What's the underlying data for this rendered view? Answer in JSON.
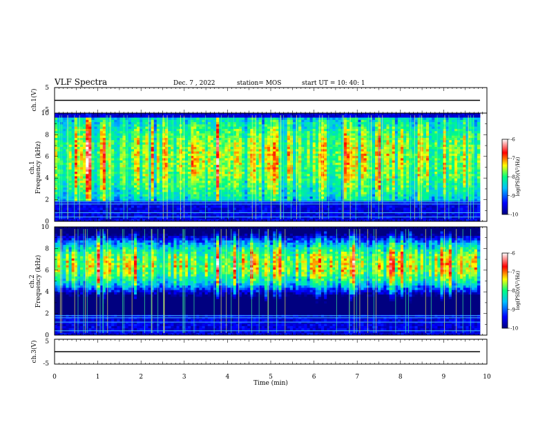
{
  "header": {
    "title": "VLF Spectra",
    "date": "Dec. 7 , 2022",
    "station": "station= MOS",
    "start": "start UT = 10: 40: 1"
  },
  "chart_data": [
    {
      "type": "line",
      "name": "ch1-voltage",
      "ylabel": "ch.1(V)",
      "ylim": [
        -5,
        5
      ],
      "yticks": [
        "5",
        "-5"
      ],
      "xlim": [
        0,
        10
      ],
      "x": [
        0,
        9.84
      ],
      "y": [
        0,
        0
      ]
    },
    {
      "type": "heatmap",
      "name": "ch1-spectrogram",
      "ylabel": "ch.1 Frequency (kHz)",
      "ylim": [
        0,
        10
      ],
      "yticks": [
        "0",
        "2",
        "4",
        "6",
        "8",
        "10"
      ],
      "xlim": [
        0,
        9.84
      ],
      "intense_band_khz": [
        2,
        9.5
      ],
      "hum_lines_khz": [
        0.4,
        0.8,
        1.6,
        1.8
      ],
      "colorbar": {
        "label": "log(PSD)(V²/Hz)",
        "range": [
          -10,
          -6
        ],
        "ticks": [
          "-6",
          "-7",
          "-8",
          "-9",
          "-10"
        ],
        "colors": [
          "#000080",
          "#0000ff",
          "#00c0ff",
          "#00ff80",
          "#ffff00",
          "#ff0000",
          "#ffffff"
        ]
      }
    },
    {
      "type": "heatmap",
      "name": "ch2-spectrogram",
      "ylabel": "ch.2 Frequency (kHz)",
      "ylim": [
        0,
        10
      ],
      "yticks": [
        "0",
        "2",
        "4",
        "6",
        "8",
        "10"
      ],
      "xlim": [
        0,
        9.84
      ],
      "intense_band_khz": [
        5.5,
        7.5
      ],
      "hum_lines_khz": [
        0.4,
        1.2,
        1.6,
        1.8
      ],
      "colorbar": {
        "label": "log(PSD)(V²/Hz)",
        "range": [
          -10,
          -6
        ],
        "ticks": [
          "-6",
          "-7",
          "-8",
          "-9",
          "-10"
        ],
        "colors": [
          "#000080",
          "#0000ff",
          "#00c0ff",
          "#00ff80",
          "#ffff00",
          "#ff0000",
          "#ffffff"
        ]
      }
    },
    {
      "type": "line",
      "name": "ch3-voltage",
      "ylabel": "ch.3(V)",
      "ylim": [
        -5,
        5
      ],
      "yticks": [
        "5",
        "-5"
      ],
      "xlim": [
        0,
        10
      ],
      "x": [
        0,
        9.84
      ],
      "y": [
        0,
        0
      ]
    }
  ],
  "xaxis": {
    "label": "Time (min)",
    "range": [
      0,
      10
    ],
    "ticks": [
      "0",
      "1",
      "2",
      "3",
      "4",
      "5",
      "6",
      "7",
      "8",
      "9",
      "10"
    ]
  }
}
